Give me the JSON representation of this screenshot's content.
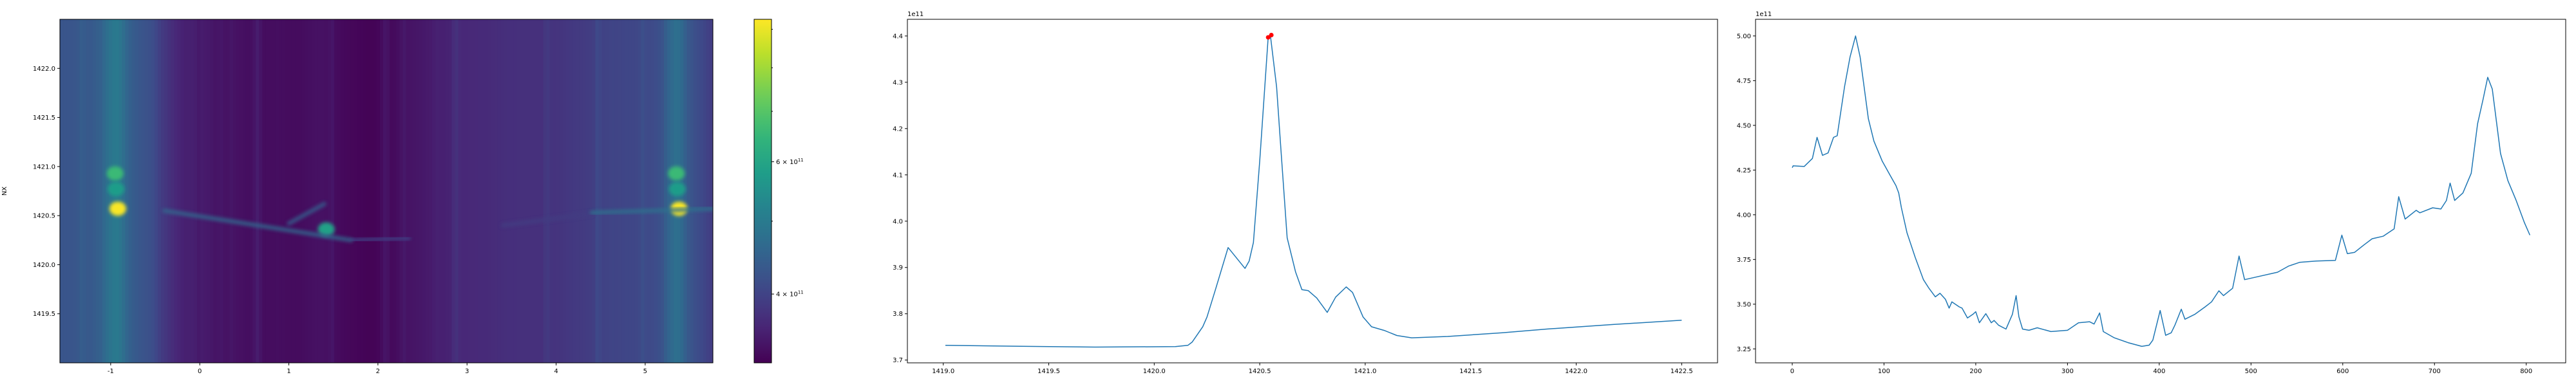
{
  "chart_data": [
    {
      "type": "heatmap",
      "title": "",
      "xlabel": "",
      "ylabel": "NX",
      "xlim": [
        -1.57,
        5.76
      ],
      "ylim": [
        1419.0,
        1422.5
      ],
      "xticks": [
        -1,
        0,
        1,
        2,
        3,
        4,
        5
      ],
      "yticks": [
        1419.5,
        1420.0,
        1420.5,
        1421.0,
        1421.5,
        1422.0
      ],
      "colormap": "viridis",
      "colorbar": {
        "scale": "log",
        "range": [
          324000000000.0,
          928000000000.0
        ],
        "major_ticks": [
          {
            "value": 400000000000.0,
            "label_base": "4 × 10",
            "label_exp": "11"
          },
          {
            "value": 600000000000.0,
            "label_base": "6 × 10",
            "label_exp": "11"
          }
        ],
        "minor_ticks": [
          500000000000.0,
          700000000000.0,
          800000000000.0,
          900000000000.0
        ]
      },
      "features": [
        {
          "kind": "spot",
          "x": -0.92,
          "y": 1420.57,
          "value": 920000000000.0
        },
        {
          "kind": "spot",
          "x": -0.95,
          "y": 1420.93,
          "value": 660000000000.0
        },
        {
          "kind": "spot",
          "x": -0.94,
          "y": 1420.77,
          "value": 580000000000.0
        },
        {
          "kind": "spot",
          "x": 5.38,
          "y": 1420.57,
          "value": 920000000000.0
        },
        {
          "kind": "spot",
          "x": 5.35,
          "y": 1420.93,
          "value": 660000000000.0
        },
        {
          "kind": "spot",
          "x": 5.36,
          "y": 1420.77,
          "value": 580000000000.0
        },
        {
          "kind": "spot",
          "x": 1.42,
          "y": 1420.36,
          "value": 590000000000.0
        },
        {
          "kind": "streak",
          "x": [
            -1.57,
            -0.4
          ],
          "y": [
            1420.57,
            1420.57
          ],
          "value": 520000000000.0
        },
        {
          "kind": "streak",
          "x": [
            -0.4,
            1.7
          ],
          "y": [
            1420.55,
            1420.25
          ],
          "value": 460000000000.0
        },
        {
          "kind": "streak",
          "x": [
            1.0,
            1.4
          ],
          "y": [
            1420.42,
            1420.62
          ],
          "value": 440000000000.0
        },
        {
          "kind": "streak",
          "x": [
            1.7,
            2.35
          ],
          "y": [
            1420.25,
            1420.27
          ],
          "value": 400000000000.0
        },
        {
          "kind": "streak",
          "x": [
            3.4,
            4.4
          ],
          "y": [
            1420.4,
            1420.52
          ],
          "value": 390000000000.0
        },
        {
          "kind": "streak",
          "x": [
            4.4,
            5.76
          ],
          "y": [
            1420.53,
            1420.57
          ],
          "value": 480000000000.0
        }
      ]
    },
    {
      "type": "line",
      "title": "",
      "xlabel": "",
      "ylabel": "",
      "offset_text": "1e11",
      "xlim": [
        1418.83,
        1422.67
      ],
      "ylim": [
        3.694,
        4.436
      ],
      "xticks": [
        "1419.0",
        "1419.5",
        "1420.0",
        "1420.5",
        "1421.0",
        "1421.5",
        "1422.0",
        "1422.5"
      ],
      "yticks": [
        "3.7",
        "3.8",
        "3.9",
        "4.0",
        "4.1",
        "4.2",
        "4.3",
        "4.4"
      ],
      "color": "#1f77b4",
      "x": [
        1419.01,
        1419.33,
        1419.72,
        1420.1,
        1420.16,
        1420.18,
        1420.23,
        1420.25,
        1420.29,
        1420.35,
        1420.43,
        1420.45,
        1420.47,
        1420.5,
        1420.54,
        1420.55,
        1420.58,
        1420.6,
        1420.63,
        1420.67,
        1420.7,
        1420.73,
        1420.77,
        1420.82,
        1420.86,
        1420.91,
        1420.94,
        1420.99,
        1421.03,
        1421.09,
        1421.15,
        1421.22,
        1421.39,
        1421.65,
        1421.86,
        1422.18,
        1422.5
      ],
      "y": [
        3.732,
        3.73,
        3.728,
        3.729,
        3.732,
        3.739,
        3.772,
        3.793,
        3.852,
        3.943,
        3.898,
        3.914,
        3.954,
        4.13,
        4.397,
        4.403,
        4.29,
        4.157,
        3.964,
        3.89,
        3.852,
        3.85,
        3.834,
        3.803,
        3.836,
        3.858,
        3.846,
        3.793,
        3.772,
        3.764,
        3.753,
        3.748,
        3.751,
        3.759,
        3.767,
        3.777,
        3.786
      ],
      "markers": {
        "color": "#ff0000",
        "x": [
          1420.54,
          1420.555
        ],
        "y": [
          4.397,
          4.402
        ]
      }
    },
    {
      "type": "line",
      "title": "",
      "xlabel": "",
      "ylabel": "",
      "offset_text": "1e11",
      "xlim": [
        -40,
        843
      ],
      "ylim": [
        3.172,
        5.093
      ],
      "xticks": [
        "0",
        "100",
        "200",
        "300",
        "400",
        "500",
        "600",
        "700",
        "800"
      ],
      "yticks": [
        "3.25",
        "3.50",
        "3.75",
        "4.00",
        "4.25",
        "4.50",
        "4.75",
        "5.00"
      ],
      "color": "#1f77b4",
      "x": [
        0,
        1,
        13,
        22,
        27,
        33,
        39,
        45,
        49,
        57,
        63,
        69,
        74,
        83,
        89,
        98,
        107,
        113,
        116,
        119,
        125,
        134,
        143,
        149,
        156,
        161,
        167,
        171,
        174,
        182,
        185,
        191,
        197,
        200,
        204,
        211,
        217,
        220,
        225,
        233,
        240,
        244,
        247,
        251,
        258,
        267,
        282,
        300,
        312,
        324,
        329,
        335,
        339,
        351,
        366,
        381,
        389,
        393,
        401,
        407,
        413,
        417,
        424,
        428,
        439,
        450,
        457,
        465,
        470,
        480,
        487,
        493,
        505,
        529,
        541,
        553,
        571,
        592,
        599,
        605,
        613,
        623,
        632,
        644,
        656,
        661,
        668,
        680,
        684,
        698,
        707,
        713,
        717,
        722,
        731,
        740,
        747,
        753,
        758,
        763,
        772,
        780,
        789,
        798,
        804
      ],
      "y": [
        4.263,
        4.274,
        4.27,
        4.315,
        4.433,
        4.332,
        4.346,
        4.433,
        4.442,
        4.716,
        4.882,
        5.0,
        4.882,
        4.537,
        4.412,
        4.301,
        4.218,
        4.163,
        4.122,
        4.039,
        3.9,
        3.762,
        3.637,
        3.589,
        3.541,
        3.561,
        3.527,
        3.478,
        3.513,
        3.485,
        3.478,
        3.423,
        3.444,
        3.458,
        3.396,
        3.447,
        3.396,
        3.409,
        3.382,
        3.361,
        3.444,
        3.548,
        3.43,
        3.361,
        3.354,
        3.368,
        3.347,
        3.354,
        3.396,
        3.402,
        3.389,
        3.451,
        3.347,
        3.312,
        3.285,
        3.264,
        3.271,
        3.299,
        3.465,
        3.326,
        3.34,
        3.382,
        3.472,
        3.416,
        3.444,
        3.485,
        3.513,
        3.575,
        3.548,
        3.589,
        3.769,
        3.637,
        3.651,
        3.679,
        3.713,
        3.734,
        3.741,
        3.745,
        3.886,
        3.783,
        3.79,
        3.831,
        3.866,
        3.88,
        3.921,
        4.101,
        3.976,
        4.025,
        4.011,
        4.039,
        4.032,
        4.08,
        4.177,
        4.08,
        4.122,
        4.232,
        4.509,
        4.647,
        4.769,
        4.703,
        4.343,
        4.191,
        4.08,
        3.956,
        3.886
      ]
    }
  ]
}
